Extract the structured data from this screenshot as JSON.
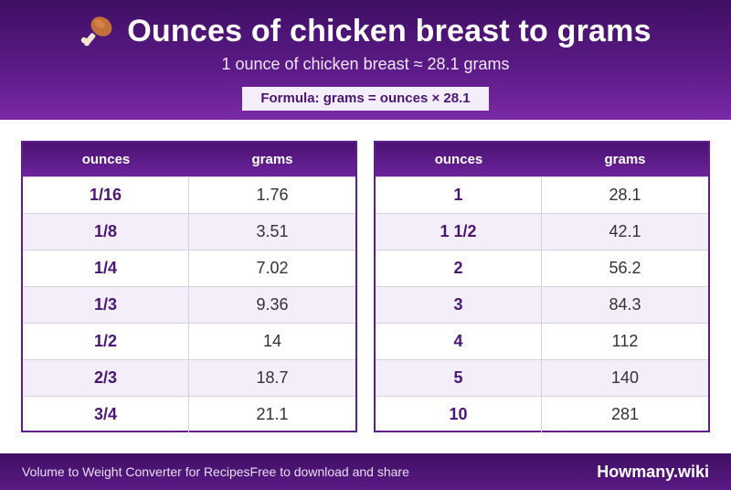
{
  "header": {
    "title": "Ounces of chicken breast to grams",
    "icon": "drumstick-icon",
    "subtitle": "1 ounce of chicken breast ≈ 28.1 grams",
    "formula": "Formula: grams = ounces × 28.1"
  },
  "tables": [
    {
      "headers": [
        "ounces",
        "grams"
      ],
      "rows": [
        {
          "ounces": "1/16",
          "grams": "1.76"
        },
        {
          "ounces": "1/8",
          "grams": "3.51"
        },
        {
          "ounces": "1/4",
          "grams": "7.02"
        },
        {
          "ounces": "1/3",
          "grams": "9.36"
        },
        {
          "ounces": "1/2",
          "grams": "14"
        },
        {
          "ounces": "2/3",
          "grams": "18.7"
        },
        {
          "ounces": "3/4",
          "grams": "21.1"
        }
      ]
    },
    {
      "headers": [
        "ounces",
        "grams"
      ],
      "rows": [
        {
          "ounces": "1",
          "grams": "28.1"
        },
        {
          "ounces": "1 1/2",
          "grams": "42.1"
        },
        {
          "ounces": "2",
          "grams": "56.2"
        },
        {
          "ounces": "3",
          "grams": "84.3"
        },
        {
          "ounces": "4",
          "grams": "112"
        },
        {
          "ounces": "5",
          "grams": "140"
        },
        {
          "ounces": "10",
          "grams": "281"
        }
      ]
    }
  ],
  "footer": {
    "left_text": "Volume to Weight Converter for RecipesFree to download and share",
    "brand": "Howmany.wiki"
  },
  "colors": {
    "primary": "#5a1a85",
    "row_alt": "#f3eefa",
    "accent_text": "#4b1572"
  }
}
